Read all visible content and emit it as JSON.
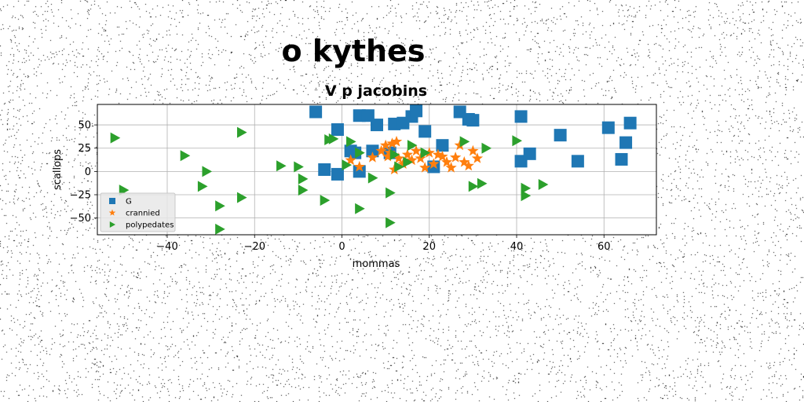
{
  "chart_data": {
    "type": "scatter",
    "suptitle": "o kythes",
    "title": "V p jacobins",
    "xlabel": "mommas",
    "ylabel": "scallops",
    "xlim": [
      -56,
      72
    ],
    "ylim": [
      -68,
      72
    ],
    "xticks": [
      -40,
      -20,
      0,
      20,
      40,
      60
    ],
    "yticks": [
      -50,
      -25,
      0,
      25,
      50
    ],
    "grid": true,
    "legend_position": "lower-left",
    "series": [
      {
        "name": "G",
        "marker": "square",
        "color": "#1f77b4",
        "x": [
          -6,
          -4,
          -1,
          -1,
          2,
          3,
          4,
          6,
          7,
          8,
          12,
          14,
          16,
          17,
          19,
          21,
          23,
          27,
          29,
          30,
          41,
          41,
          43,
          50,
          54,
          61,
          64,
          65,
          66,
          4,
          11
        ],
        "y": [
          64,
          2,
          -3,
          45,
          22,
          20,
          60,
          60,
          22,
          50,
          51,
          52,
          59,
          65,
          43,
          5,
          28,
          64,
          56,
          55,
          59,
          11,
          19,
          39,
          11,
          47,
          13,
          31,
          52,
          0,
          20
        ]
      },
      {
        "name": "crannied",
        "marker": "star",
        "color": "#ff7f0e",
        "x": [
          2,
          4,
          7,
          9,
          10,
          10.5,
          11,
          11.5,
          12,
          12.5,
          13,
          14,
          15,
          16,
          17,
          18,
          19,
          20,
          21,
          22,
          23,
          24,
          25,
          26,
          27,
          28,
          29,
          30,
          31
        ],
        "y": [
          12,
          5,
          15,
          22,
          28,
          16,
          20,
          30,
          2,
          32,
          14,
          8,
          18,
          12,
          22,
          14,
          4,
          20,
          8,
          18,
          16,
          10,
          4,
          15,
          28,
          10,
          6,
          22,
          14
        ]
      },
      {
        "name": "polypedates",
        "marker": "triangle-right",
        "color": "#2ca02c",
        "x": [
          -52,
          -50,
          -36,
          -32,
          -31,
          -28,
          -28,
          -23,
          -23,
          -14,
          -10,
          -9,
          -9,
          -4,
          -3,
          -2,
          1,
          2,
          4,
          4,
          7,
          11,
          11,
          12,
          13,
          15,
          16,
          19,
          28,
          30,
          32,
          33,
          40,
          42,
          42,
          46
        ],
        "y": [
          36,
          -20,
          17,
          -16,
          0,
          -37,
          -62,
          -28,
          42,
          6,
          5,
          -8,
          -20,
          -31,
          34,
          35,
          7,
          32,
          -40,
          20,
          -7,
          -55,
          -23,
          18,
          5,
          10,
          28,
          20,
          32,
          -16,
          -13,
          25,
          33,
          -18,
          -26,
          -14
        ]
      }
    ]
  }
}
